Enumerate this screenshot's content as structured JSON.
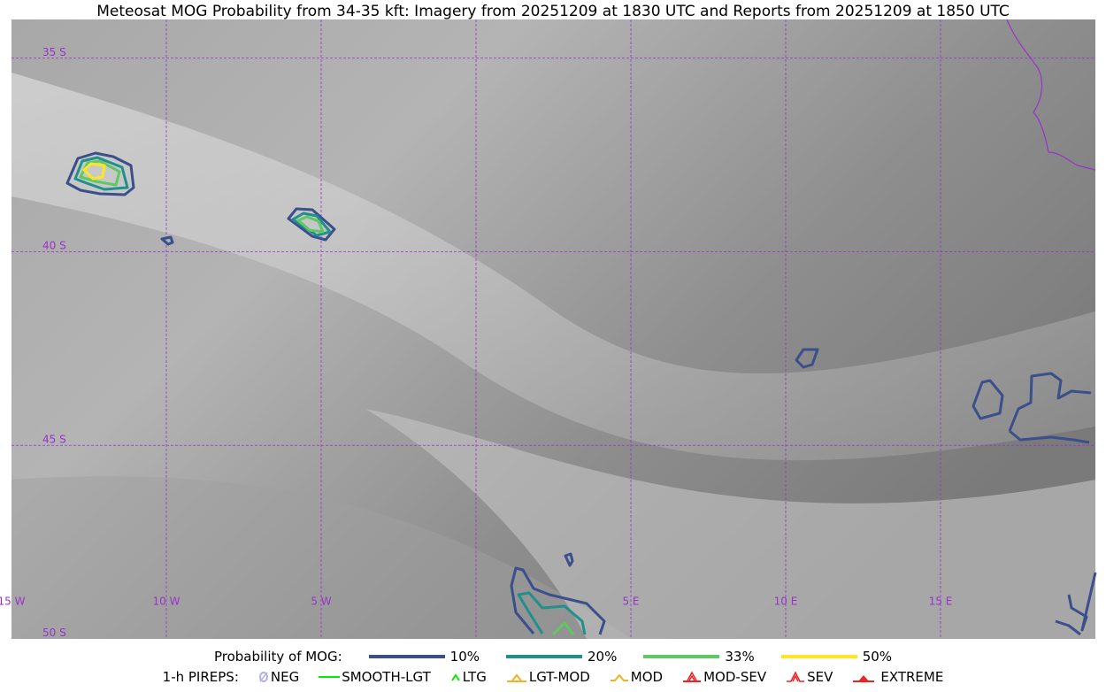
{
  "title": "Meteosat MOG Probability from 34-35 kft: Imagery from 20251209 at 1830 UTC and Reports from 20251209 at 1850 UTC",
  "map": {
    "extent": {
      "lon": [
        -15,
        20
      ],
      "lat": [
        -34,
        -50
      ]
    },
    "lat_labels": [
      "35 S",
      "40 S",
      "45 S",
      "50 S"
    ],
    "lon_labels": [
      "15 W",
      "10 W",
      "5 W",
      "5 E",
      "10 E",
      "15 E"
    ],
    "grid_color": "#9933cc",
    "coast_color": "#9933cc"
  },
  "legend": {
    "prob_label": "Probability of MOG:",
    "levels": [
      {
        "label": "10%",
        "color": "#3b4f8c"
      },
      {
        "label": "20%",
        "color": "#21908c"
      },
      {
        "label": "33%",
        "color": "#5ec962"
      },
      {
        "label": "50%",
        "color": "#fde725"
      }
    ],
    "pirep_label": "1-h PIREPS:",
    "pireps": [
      {
        "label": "NEG",
        "icon": "neg-circle-icon",
        "color": "#b0b0f0"
      },
      {
        "label": "SMOOTH-LGT",
        "icon": "line-icon",
        "color": "#00ee00"
      },
      {
        "label": "LTG",
        "icon": "caret-icon",
        "color": "#00ee00"
      },
      {
        "label": "LGT-MOD",
        "icon": "caret-bar-icon",
        "color": "#f5b020"
      },
      {
        "label": "MOD",
        "icon": "caret-icon",
        "color": "#f5b020"
      },
      {
        "label": "MOD-SEV",
        "icon": "double-caret-bar-icon",
        "color": "#ee2222"
      },
      {
        "label": "SEV",
        "icon": "double-caret-icon",
        "color": "#ee2222"
      },
      {
        "label": "EXTREME",
        "icon": "filled-triangle-icon",
        "color": "#ee2222"
      }
    ]
  }
}
